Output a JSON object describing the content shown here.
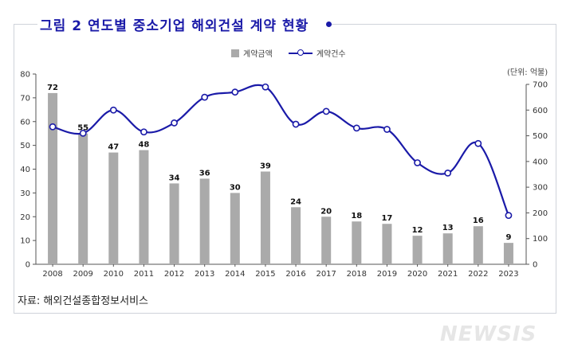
{
  "title": "그림 2 연도별 중소기업 해외건설 계약 현황",
  "legend": {
    "bar": "계약금액",
    "line": "계약건수"
  },
  "unit": "(단위: 억불)",
  "source": "자료: 해외건설종합정보서비스",
  "watermark": "NEWSIS",
  "colors": {
    "bar": "#aaaaaa",
    "line": "#1a1aa8",
    "title": "#1a1aa8"
  },
  "chart_data": {
    "type": "bar+line",
    "categories": [
      "2008",
      "2009",
      "2010",
      "2011",
      "2012",
      "2013",
      "2014",
      "2015",
      "2016",
      "2017",
      "2018",
      "2019",
      "2020",
      "2021",
      "2022",
      "2023"
    ],
    "series": [
      {
        "name": "계약금액",
        "type": "bar",
        "axis": "left",
        "values": [
          72,
          55,
          47,
          48,
          34,
          36,
          30,
          39,
          24,
          20,
          18,
          17,
          12,
          13,
          16,
          9
        ]
      },
      {
        "name": "계약건수",
        "type": "line",
        "axis": "right",
        "values": [
          535,
          510,
          600,
          515,
          550,
          650,
          670,
          690,
          545,
          595,
          530,
          525,
          395,
          355,
          470,
          190
        ]
      }
    ],
    "y_left": {
      "min": 0,
      "max": 80,
      "ticks": [
        0,
        10,
        20,
        30,
        40,
        50,
        60,
        70,
        80
      ]
    },
    "y_right": {
      "min": 0,
      "max": 700,
      "ticks": [
        0,
        100,
        200,
        300,
        400,
        500,
        600,
        700
      ]
    },
    "legend_position": "top-center",
    "grid": false
  }
}
